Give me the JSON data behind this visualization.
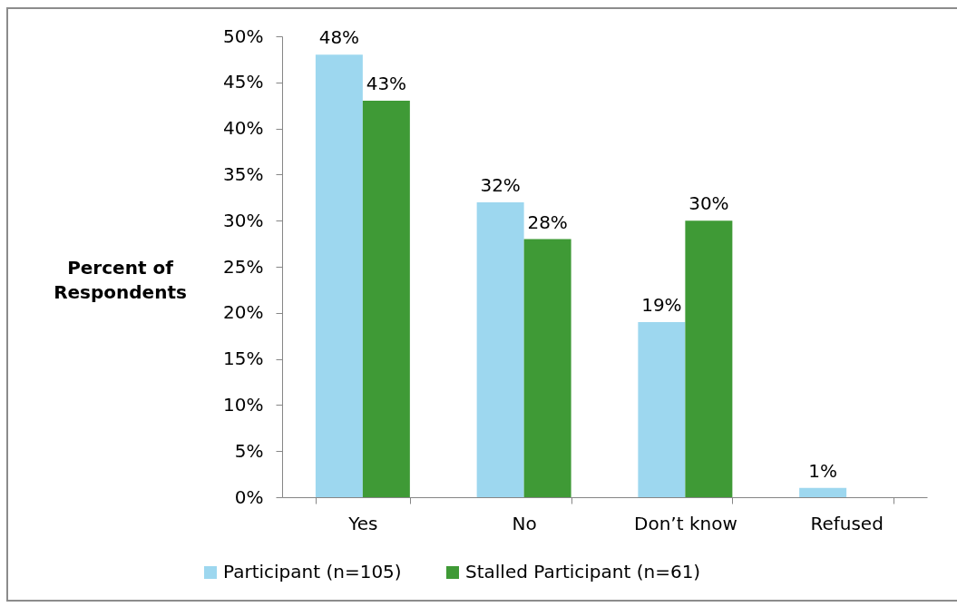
{
  "chart_data": {
    "type": "bar",
    "ylabel": "Percent of Respondents",
    "categories": [
      "Yes",
      "No",
      "Don’t know",
      "Refused"
    ],
    "series": [
      {
        "name": "Participant (n=105)",
        "color": "#9dd7ef",
        "values": [
          48,
          32,
          19,
          1
        ],
        "value_labels": [
          "48%",
          "32%",
          "19%",
          "1%"
        ]
      },
      {
        "name": "Stalled Participant (n=61)",
        "color": "#3f9a36",
        "values": [
          43,
          28,
          30,
          null
        ],
        "value_labels": [
          "43%",
          "28%",
          "30%",
          null
        ]
      }
    ],
    "ylim": [
      0,
      50
    ],
    "yticks": [
      {
        "value": 0,
        "label": "0%"
      },
      {
        "value": 5,
        "label": "5%"
      },
      {
        "value": 10,
        "label": "10%"
      },
      {
        "value": 15,
        "label": "15%"
      },
      {
        "value": 20,
        "label": "20%"
      },
      {
        "value": 25,
        "label": "25%"
      },
      {
        "value": 30,
        "label": "30%"
      },
      {
        "value": 35,
        "label": "35%"
      },
      {
        "value": 40,
        "label": "40%"
      },
      {
        "value": 45,
        "label": "45%"
      },
      {
        "value": 50,
        "label": "50%"
      }
    ],
    "grid": false,
    "legend": "bottom"
  }
}
